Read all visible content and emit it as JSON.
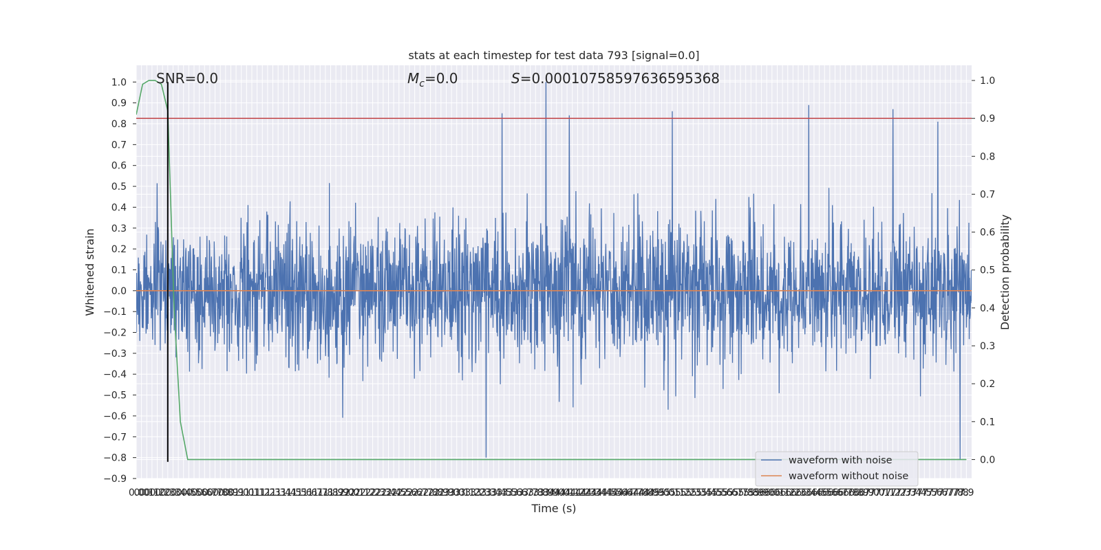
{
  "chart_data": {
    "type": "line",
    "title": "stats at each timestep for test data 793 [signal=0.0]",
    "xlabel": "Time (s)",
    "ylabel": "Whitened strain",
    "ylabel_right": "Detection probability",
    "xlim": [
      0.0,
      7.95
    ],
    "ylim": [
      -0.9,
      1.08
    ],
    "ylim_right": [
      -0.05,
      1.04
    ],
    "x_ticks": [
      0.0,
      0.05,
      0.1,
      0.15,
      0.2,
      0.25,
      0.3,
      0.35,
      0.4,
      0.45,
      0.5,
      0.55,
      0.6,
      0.65,
      0.7,
      0.75,
      0.8,
      0.85,
      0.9,
      0.95,
      1.0,
      1.05,
      1.1,
      1.15,
      1.2,
      1.25,
      1.3,
      1.35,
      1.4,
      1.45,
      1.5,
      1.55,
      1.6,
      1.65,
      1.7,
      1.75,
      1.8,
      1.85,
      1.9,
      1.95,
      2.0,
      2.05,
      2.1,
      2.15,
      2.2,
      2.25,
      2.3,
      2.35,
      2.4,
      2.45,
      2.5,
      2.55,
      2.6,
      2.65,
      2.7,
      2.75,
      2.8,
      2.85,
      2.9,
      2.95,
      3.0,
      3.05,
      3.1,
      3.15,
      3.2,
      3.25,
      3.3,
      3.35,
      3.4,
      3.45,
      3.5,
      3.55,
      3.6,
      3.65,
      3.7,
      3.75,
      3.8,
      3.85,
      3.9,
      3.95,
      4.0,
      4.05,
      4.1,
      4.15,
      4.2,
      4.25,
      4.3,
      4.35,
      4.4,
      4.45,
      4.5,
      4.55,
      4.6,
      4.65,
      4.7,
      4.75,
      4.8,
      4.85,
      4.9,
      4.95,
      5.0,
      5.05,
      5.1,
      5.15,
      5.2,
      5.25,
      5.3,
      5.35,
      5.4,
      5.45,
      5.5,
      5.55,
      5.6,
      5.65,
      5.7,
      5.75,
      5.8,
      5.85,
      5.9,
      5.95,
      6.0,
      6.05,
      6.1,
      6.15,
      6.2,
      6.25,
      6.3,
      6.35,
      6.4,
      6.45,
      6.5,
      6.55,
      6.6,
      6.65,
      6.7,
      6.75,
      6.8,
      6.85,
      6.9,
      6.95,
      7.0,
      7.05,
      7.1,
      7.15,
      7.2,
      7.25,
      7.3,
      7.35,
      7.4,
      7.45,
      7.5,
      7.55,
      7.6,
      7.65,
      7.7,
      7.75,
      7.8,
      7.85,
      7.9
    ],
    "x_tick_labels": [
      "0.0",
      "0.0",
      "0.1",
      "0.1",
      "0.2",
      "0.2",
      "0.3",
      "0.3",
      "0.4",
      "0.4",
      "0.5",
      "0.5",
      "0.6",
      "0.6",
      "0.7",
      "0.7",
      "0.8",
      "0.8",
      "0.9",
      "0.9",
      "1.0",
      "1.0",
      "1.1",
      "1.1",
      "1.2",
      "1.2",
      "1.3",
      "1.3",
      "1.4",
      "1.4",
      "1.5",
      "1.5",
      "1.6",
      "1.6",
      "1.7",
      "1.7",
      "1.8",
      "1.8",
      "1.9",
      "1.9",
      "2.0",
      "2.0",
      "2.1",
      "2.1",
      "2.2",
      "2.2",
      "2.3",
      "2.3",
      "2.4",
      "2.4",
      "2.5",
      "2.5",
      "2.6",
      "2.6",
      "2.7",
      "2.7",
      "2.8",
      "2.8",
      "2.9",
      "2.9",
      "3.0",
      "3.0",
      "3.1",
      "3.1",
      "3.2",
      "3.2",
      "3.3",
      "3.3",
      "3.4",
      "3.4",
      "3.5",
      "3.5",
      "3.6",
      "3.6",
      "3.7",
      "3.7",
      "3.8",
      "3.8",
      "3.9",
      "3.9",
      "4.0",
      "4.0",
      "4.1",
      "4.1",
      "4.2",
      "4.2",
      "4.3",
      "4.3",
      "4.4",
      "4.4",
      "4.5",
      "4.5",
      "4.6",
      "4.6",
      "4.7",
      "4.7",
      "4.8",
      "4.8",
      "4.9",
      "4.9",
      "5.0",
      "5.0",
      "5.1",
      "5.1",
      "5.2",
      "5.2",
      "5.3",
      "5.3",
      "5.4",
      "5.4",
      "5.5",
      "5.5",
      "5.6",
      "5.6",
      "5.7",
      "5.7",
      "5.8",
      "5.8",
      "5.9",
      "5.9",
      "6.0",
      "6.0",
      "6.1",
      "6.1",
      "6.2",
      "6.2",
      "6.3",
      "6.3",
      "6.4",
      "6.4",
      "6.5",
      "6.5",
      "6.6",
      "6.6",
      "6.7",
      "6.7",
      "6.8",
      "6.8",
      "6.9",
      "6.9",
      "7.0",
      "7.0",
      "7.1",
      "7.1",
      "7.2",
      "7.2",
      "7.3",
      "7.3",
      "7.4",
      "7.4",
      "7.5",
      "7.5",
      "7.6",
      "7.6",
      "7.7",
      "7.7",
      "7.8",
      "7.8",
      "7.9"
    ],
    "y_ticks": [
      -0.9,
      -0.8,
      -0.7,
      -0.6,
      -0.5,
      -0.4,
      -0.3,
      -0.2,
      -0.1,
      0.0,
      0.1,
      0.2,
      0.3,
      0.4,
      0.5,
      0.6,
      0.7,
      0.8,
      0.9,
      1.0
    ],
    "y_tick_labels": [
      "−0.9",
      "−0.8",
      "−0.7",
      "−0.6",
      "−0.5",
      "−0.4",
      "−0.3",
      "−0.2",
      "−0.1",
      "0.0",
      "0.1",
      "0.2",
      "0.3",
      "0.4",
      "0.5",
      "0.6",
      "0.7",
      "0.8",
      "0.9",
      "1.0"
    ],
    "y_right_ticks": [
      0.0,
      0.1,
      0.2,
      0.3,
      0.4,
      0.5,
      0.6,
      0.7,
      0.8,
      0.9,
      1.0
    ],
    "y_right_tick_labels": [
      "0.0",
      "0.1",
      "0.2",
      "0.3",
      "0.4",
      "0.5",
      "0.6",
      "0.7",
      "0.8",
      "0.9",
      "1.0"
    ],
    "grid": true,
    "legend_position": "bottom-right",
    "colors": {
      "noise": "#4c72b0",
      "clean": "#dd8452",
      "prob": "#55a868",
      "threshold": "#c44e52",
      "marker": "#000000",
      "background": "#eaeaf2",
      "grid": "#ffffff"
    },
    "series": [
      {
        "name": "waveform with noise",
        "axis": "left",
        "style": "noise",
        "x_range": [
          0.0,
          7.95
        ],
        "y_range": [
          -0.81,
          1.0
        ],
        "peaks": [
          {
            "x": 3.48,
            "y": 0.85
          },
          {
            "x": 3.9,
            "y": 1.0
          },
          {
            "x": 4.12,
            "y": 0.84
          },
          {
            "x": 5.1,
            "y": 0.86
          },
          {
            "x": 6.4,
            "y": 0.89
          },
          {
            "x": 7.2,
            "y": 0.87
          },
          {
            "x": 7.63,
            "y": 0.81
          },
          {
            "x": 3.33,
            "y": -0.8
          },
          {
            "x": 7.84,
            "y": -0.81
          }
        ]
      },
      {
        "name": "waveform without noise",
        "axis": "left",
        "style": "clean",
        "x": [
          0.0,
          7.95
        ],
        "y": [
          0.0,
          0.0
        ]
      },
      {
        "axis": "right",
        "style": "prob",
        "x": [
          0.0,
          0.06,
          0.12,
          0.18,
          0.24,
          0.3,
          0.36,
          0.42,
          0.49,
          0.6,
          7.9
        ],
        "y": [
          0.91,
          0.99,
          1.0,
          1.0,
          0.99,
          0.92,
          0.4,
          0.1,
          0.0,
          0.0,
          0.0
        ]
      },
      {
        "axis": "right",
        "style": "threshold",
        "x": [
          0.0,
          7.95
        ],
        "y": [
          0.9,
          0.9
        ]
      },
      {
        "axis": "left",
        "style": "marker",
        "x": [
          0.3,
          0.3
        ],
        "y": [
          -0.82,
          1.0
        ]
      }
    ],
    "annotations": {
      "snr": "SNR=0.0",
      "mc_symbol": "M",
      "mc_sub": "c",
      "mc_value": "=0.0",
      "s_symbol": "S",
      "s_value": "=0.00010758597636595368"
    }
  }
}
